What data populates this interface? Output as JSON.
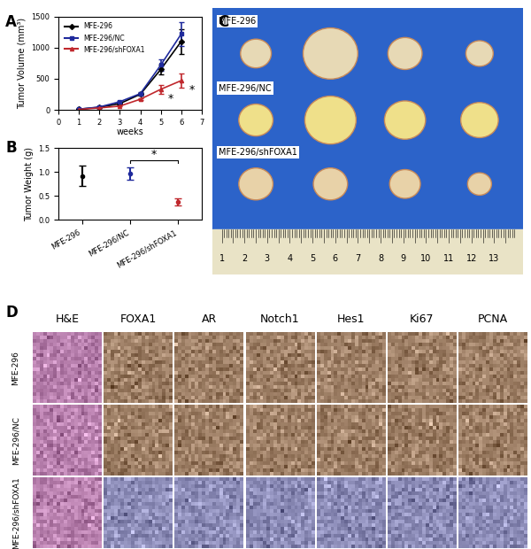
{
  "panel_labels": [
    "A",
    "B",
    "C",
    "D"
  ],
  "chart_data": [
    {
      "type": "line",
      "xlabel": "weeks",
      "ylabel": "Tumor Volume (mm³)",
      "x": [
        1,
        2,
        3,
        4,
        5,
        6
      ],
      "xlim": [
        0,
        7
      ],
      "xticks": [
        0,
        1,
        2,
        3,
        4,
        5,
        6,
        7
      ],
      "ylim": [
        0,
        1500
      ],
      "yticks": [
        0,
        500,
        1000,
        1500
      ],
      "legend": "upper left",
      "series": [
        {
          "name": "MFE-296",
          "color": "#000000",
          "marker": "diamond",
          "values": [
            10,
            40,
            100,
            250,
            650,
            1100
          ],
          "errors": [
            2,
            6,
            12,
            25,
            80,
            200
          ]
        },
        {
          "name": "MFE-296/NC",
          "color": "#1f2a9c",
          "marker": "square",
          "values": [
            10,
            45,
            130,
            260,
            720,
            1220
          ],
          "errors": [
            2,
            6,
            15,
            25,
            90,
            190
          ]
        },
        {
          "name": "MFE-296/shFOXA1",
          "color": "#c0282d",
          "marker": "triangle",
          "values": [
            5,
            30,
            60,
            170,
            330,
            470
          ],
          "errors": [
            1,
            5,
            10,
            20,
            70,
            110
          ]
        }
      ],
      "annotations": [
        {
          "x": 5,
          "series": "MFE-296/shFOXA1",
          "label": "*"
        },
        {
          "x": 6,
          "series": "MFE-296/shFOXA1",
          "label": "*"
        }
      ]
    },
    {
      "type": "scatter",
      "ylabel": "Tumor Weight (g)",
      "categories": [
        "MFE-296",
        "MFE-296/NC",
        "MFE-296/shFOXA1"
      ],
      "values": [
        0.92,
        0.97,
        0.37
      ],
      "errors": [
        0.22,
        0.13,
        0.07
      ],
      "colors": [
        "#000000",
        "#1f2a9c",
        "#c0282d"
      ],
      "ylim": [
        0,
        1.5
      ],
      "yticks": [
        {
          "value": 0,
          "label": "0.0"
        },
        0.5,
        {
          "value": 1,
          "label": "1.0"
        },
        1.5
      ],
      "significance": {
        "between": [
          "MFE-296/NC",
          "MFE-296/shFOXA1"
        ],
        "label": "*"
      }
    }
  ],
  "photo": {
    "rows": [
      "MFE-296",
      "MFE-296/NC",
      "MFE-296/shFOXA1"
    ],
    "ruler": [
      1,
      2,
      3,
      4,
      5,
      6,
      7,
      8,
      9,
      10,
      11,
      12,
      13
    ]
  },
  "histology": {
    "columns": [
      "H&E",
      "FOXA1",
      "AR",
      "Notch1",
      "Hes1",
      "Ki67",
      "PCNA"
    ],
    "rows": [
      "MFE-296",
      "MFE-296/NC",
      "MFE-296/shFOXA1"
    ]
  }
}
